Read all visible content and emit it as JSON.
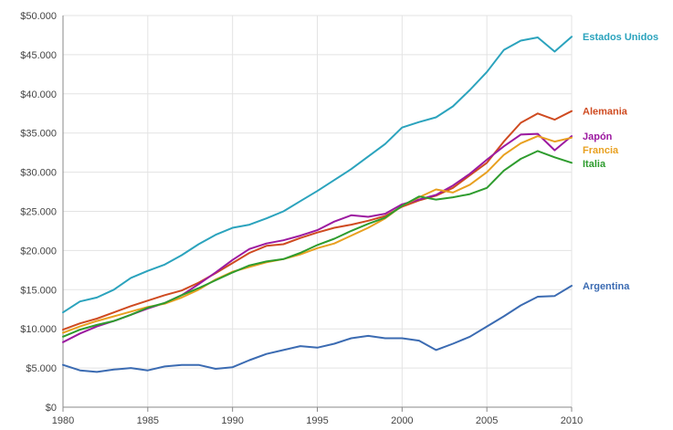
{
  "chart_data": {
    "type": "line",
    "title": "",
    "xlabel": "",
    "ylabel": "",
    "xlim": [
      1980,
      2010
    ],
    "ylim": [
      0,
      50000
    ],
    "grid": true,
    "legend": "right (labels at series ends)",
    "x_ticks": [
      {
        "value": 1980,
        "label": "1980"
      },
      {
        "value": 1985,
        "label": "1985"
      },
      {
        "value": 1990,
        "label": "1990"
      },
      {
        "value": 1995,
        "label": "1995"
      },
      {
        "value": 2000,
        "label": "2000"
      },
      {
        "value": 2005,
        "label": "2005"
      },
      {
        "value": 2010,
        "label": "2010"
      }
    ],
    "y_ticks": [
      {
        "value": 0,
        "label": "$0"
      },
      {
        "value": 5000,
        "label": "$5.000"
      },
      {
        "value": 10000,
        "label": "$10.000"
      },
      {
        "value": 15000,
        "label": "$15.000"
      },
      {
        "value": 20000,
        "label": "$20.000"
      },
      {
        "value": 25000,
        "label": "$25.000"
      },
      {
        "value": 30000,
        "label": "$30.000"
      },
      {
        "value": 35000,
        "label": "$35.000"
      },
      {
        "value": 40000,
        "label": "$40.000"
      },
      {
        "value": 45000,
        "label": "$45.000"
      },
      {
        "value": 50000,
        "label": "$50.000"
      }
    ],
    "x": [
      1980,
      1981,
      1982,
      1983,
      1984,
      1985,
      1986,
      1987,
      1988,
      1989,
      1990,
      1991,
      1992,
      1993,
      1994,
      1995,
      1996,
      1997,
      1998,
      1999,
      2000,
      2001,
      2002,
      2003,
      2004,
      2005,
      2006,
      2007,
      2008,
      2009,
      2010
    ],
    "series": [
      {
        "name": "Estados Unidos",
        "color": "#2ba3bd",
        "values": [
          12100,
          13500,
          14000,
          15000,
          16500,
          17400,
          18200,
          19400,
          20800,
          22000,
          22900,
          23300,
          24100,
          25000,
          26300,
          27600,
          29000,
          30400,
          32000,
          33600,
          35700,
          36400,
          37000,
          38400,
          40500,
          42800,
          45600,
          46800,
          47200,
          45400,
          47300
        ]
      },
      {
        "name": "Alemania",
        "color": "#cf4b21",
        "values": [
          9900,
          10700,
          11300,
          12100,
          12900,
          13600,
          14300,
          14900,
          15900,
          17100,
          18400,
          19700,
          20600,
          20800,
          21600,
          22300,
          22900,
          23300,
          23800,
          24400,
          25600,
          26400,
          27000,
          28000,
          29600,
          31200,
          33900,
          36300,
          37500,
          36700,
          37800
        ]
      },
      {
        "name": "Japón",
        "color": "#9c1aa0",
        "values": [
          8300,
          9400,
          10300,
          11000,
          11800,
          12600,
          13300,
          14300,
          15700,
          17200,
          18800,
          20200,
          20900,
          21300,
          21900,
          22600,
          23700,
          24500,
          24300,
          24700,
          25900,
          26500,
          27100,
          28300,
          29800,
          31600,
          33300,
          34800,
          34900,
          32800,
          34600
        ]
      },
      {
        "name": "Francia",
        "color": "#e8a020",
        "values": [
          9500,
          10300,
          11000,
          11600,
          12200,
          12800,
          13200,
          14000,
          15000,
          16300,
          17300,
          17900,
          18500,
          18900,
          19500,
          20300,
          20900,
          21900,
          22900,
          24100,
          25700,
          26800,
          27800,
          27400,
          28400,
          30000,
          32200,
          33700,
          34600,
          33900,
          34400
        ]
      },
      {
        "name": "Italia",
        "color": "#2e9c2e",
        "values": [
          9000,
          9900,
          10500,
          11000,
          11800,
          12700,
          13300,
          14300,
          15200,
          16200,
          17200,
          18100,
          18600,
          18900,
          19700,
          20700,
          21500,
          22500,
          23400,
          24200,
          25700,
          26900,
          26500,
          26800,
          27200,
          28000,
          30200,
          31700,
          32700,
          31900,
          31200
        ]
      },
      {
        "name": "Argentina",
        "color": "#3b6bb2",
        "values": [
          5400,
          4700,
          4500,
          4800,
          5000,
          4700,
          5200,
          5400,
          5400,
          4900,
          5100,
          6000,
          6800,
          7300,
          7800,
          7600,
          8100,
          8800,
          9100,
          8800,
          8800,
          8500,
          7300,
          8100,
          9000,
          10300,
          11600,
          13000,
          14100,
          14200,
          15500
        ]
      }
    ]
  }
}
